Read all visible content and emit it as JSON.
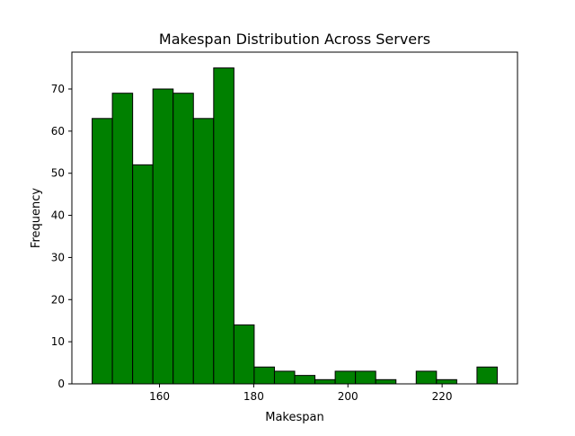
{
  "chart_data": {
    "type": "bar",
    "title": "Makespan Distribution Across Servers",
    "xlabel": "Makespan",
    "ylabel": "Frequency",
    "bin_edges": [
      145.7,
      150.0,
      154.3,
      158.6,
      162.9,
      167.2,
      171.5,
      175.8,
      180.1,
      184.4,
      188.7,
      193.0,
      197.3,
      201.6,
      205.9,
      210.2,
      214.5,
      218.8,
      223.1,
      227.4,
      231.7
    ],
    "values": [
      63,
      69,
      52,
      70,
      69,
      63,
      75,
      14,
      4,
      3,
      2,
      1,
      3,
      3,
      1,
      0,
      3,
      1,
      0,
      4
    ],
    "xlim": [
      141.4,
      236.0
    ],
    "ylim": [
      0,
      78.75
    ],
    "xticks": [
      160,
      180,
      200,
      220
    ],
    "yticks": [
      0,
      10,
      20,
      30,
      40,
      50,
      60,
      70
    ],
    "bar_color": "#008000",
    "edge_color": "#000000",
    "grid": false,
    "legend": false
  }
}
